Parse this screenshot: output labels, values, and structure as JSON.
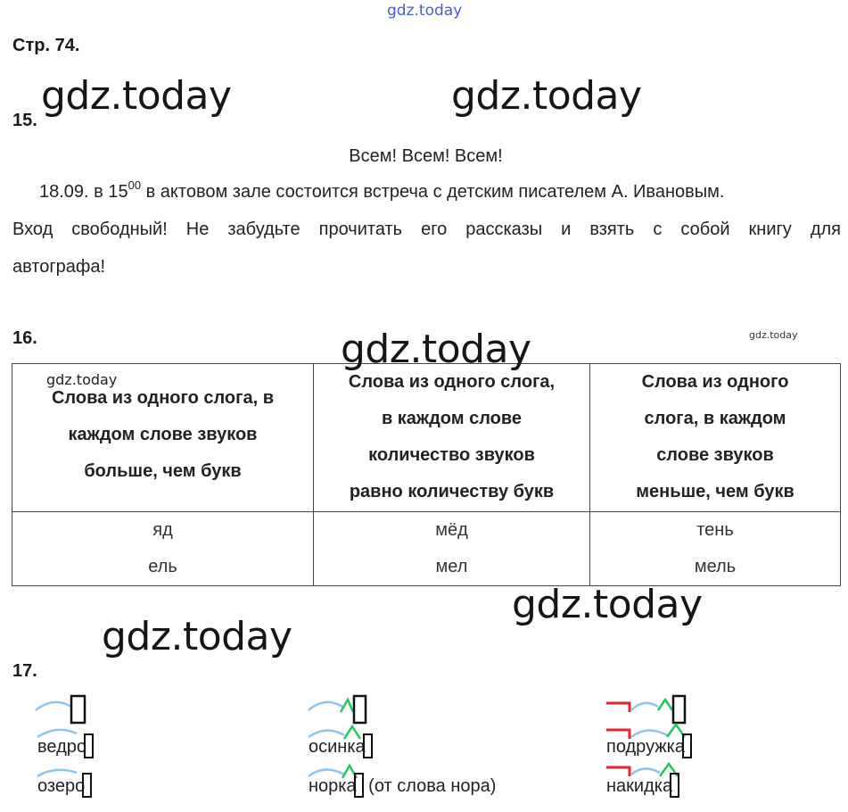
{
  "watermarks": {
    "top": "gdz.today",
    "big": "gdz.today",
    "small": "gdz.today"
  },
  "page_label": "Стр. 74.",
  "ex15": {
    "number": "15.",
    "title": "Всем! Всем! Всем!",
    "line1_before": "18.09. в 15",
    "line1_sup": "00",
    "line1_after": " в актовом зале состоится встреча с детским писателем А. Ивановым.",
    "line2": "Вход свободный! Не забудьте прочитать его рассказы и взять с собой книгу для",
    "line3": "автографа!"
  },
  "ex16": {
    "number": "16.",
    "headers": [
      [
        "Слова из одного слога, в",
        "каждом слове звуков",
        "больше, чем букв"
      ],
      [
        "Слова из одного слога,",
        "в каждом слове",
        "количество звуков",
        "равно количеству букв"
      ],
      [
        "Слова из одного",
        "слога, в каждом",
        "слове звуков",
        "меньше, чем букв"
      ]
    ],
    "cells": [
      [
        "яд",
        "ель"
      ],
      [
        "мёд",
        "мел"
      ],
      [
        "тень",
        "мель"
      ]
    ]
  },
  "ex17": {
    "number": "17.",
    "col1": [
      "ведро",
      "озеро"
    ],
    "col2": [
      "осинка",
      "норка"
    ],
    "col2_note": " (от слова нора)",
    "col3": [
      "подружка",
      "накидка"
    ]
  },
  "colors": {
    "arc": "#8fc3ea",
    "suffix": "#22c55e",
    "prefix": "#e0262e",
    "watermark_top": "#4a5bd0"
  }
}
